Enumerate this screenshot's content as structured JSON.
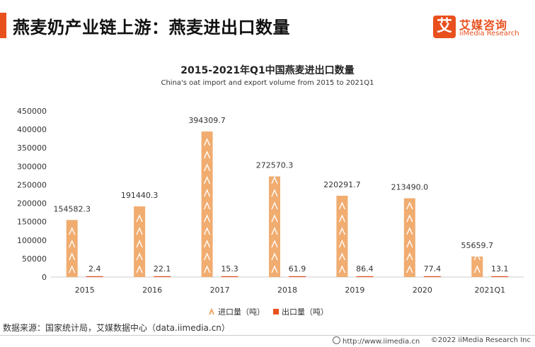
{
  "header": {
    "title": "燕麦奶产业链上游：燕麦进出口数量",
    "brand_logo_char": "艾",
    "brand_cn": "艾媒咨询",
    "brand_en": "iiMedia Research"
  },
  "chart_data": {
    "type": "bar",
    "title": "2015-2021年Q1中国燕麦进出口数量",
    "subtitle": "China's oat import and export volume from 2015 to 2021Q1",
    "categories": [
      "2015",
      "2016",
      "2017",
      "2018",
      "2019",
      "2020",
      "2021Q1"
    ],
    "series": [
      {
        "name": "进口量（吨）",
        "values": [
          154582.3,
          191440.3,
          394309.7,
          272570.3,
          220291.7,
          213490.0,
          55659.7
        ],
        "labels": [
          "154582.3",
          "191440.3",
          "394309.7",
          "272570.3",
          "220291.7",
          "213490.0",
          "55659.7"
        ],
        "color": "#f0a868"
      },
      {
        "name": "出口量（吨）",
        "values": [
          2.4,
          22.1,
          15.3,
          61.9,
          86.4,
          77.4,
          13.1
        ],
        "labels": [
          "2.4",
          "22.1",
          "15.3",
          "61.9",
          "86.4",
          "77.4",
          "13.1"
        ],
        "color": "#e8501e"
      }
    ],
    "ylim": [
      0,
      450000
    ],
    "yticks": [
      "0",
      "50000",
      "100000",
      "150000",
      "200000",
      "250000",
      "300000",
      "350000",
      "400000",
      "450000"
    ],
    "grid": false,
    "legend_position": "bottom-center"
  },
  "footer": {
    "source": "数据来源：国家统计局，艾媒数据中心（data.iimedia.cn）",
    "url": "http://www.iimedia.cn",
    "copyright": "©2022  iiMedia Research  Inc"
  }
}
